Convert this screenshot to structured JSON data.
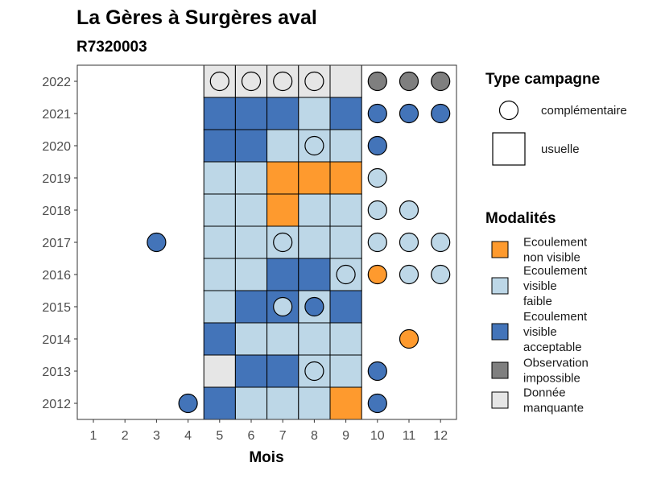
{
  "chart_data": {
    "type": "heatmap",
    "title": "La Gères à Surgères aval",
    "subtitle": "R7320003",
    "xlabel": "Mois",
    "ylabel": "",
    "x_categories": [
      "1",
      "2",
      "3",
      "4",
      "5",
      "6",
      "7",
      "8",
      "9",
      "10",
      "11",
      "12"
    ],
    "y_categories": [
      "2012",
      "2013",
      "2014",
      "2015",
      "2016",
      "2017",
      "2018",
      "2019",
      "2020",
      "2021",
      "2022"
    ],
    "grid": false,
    "legend_position": "right",
    "legend_type": {
      "title": "Type campagne",
      "entries": [
        {
          "key": "complementaire",
          "label": "complémentaire",
          "shape": "circle"
        },
        {
          "key": "usuelle",
          "label": "usuelle",
          "shape": "square"
        }
      ]
    },
    "legend_modalites": {
      "title": "Modalités",
      "entries": [
        {
          "key": "non_visible",
          "lines": [
            "Ecoulement",
            "non visible"
          ],
          "color": "#FE9A2E"
        },
        {
          "key": "faible",
          "lines": [
            "Ecoulement",
            "visible",
            "faible"
          ],
          "color": "#BDD7E7"
        },
        {
          "key": "acceptable",
          "lines": [
            "Ecoulement",
            "visible",
            "acceptable"
          ],
          "color": "#4374B9"
        },
        {
          "key": "impossible",
          "lines": [
            "Observation",
            "impossible"
          ],
          "color": "#7F7F7F"
        },
        {
          "key": "manquante",
          "lines": [
            "Donnée",
            "manquante"
          ],
          "color": "#E6E6E6"
        }
      ]
    },
    "usuelle": [
      {
        "year": "2022",
        "month": 5,
        "value": "manquante"
      },
      {
        "year": "2022",
        "month": 6,
        "value": "manquante"
      },
      {
        "year": "2022",
        "month": 7,
        "value": "manquante"
      },
      {
        "year": "2022",
        "month": 8,
        "value": "manquante"
      },
      {
        "year": "2022",
        "month": 9,
        "value": "manquante"
      },
      {
        "year": "2021",
        "month": 5,
        "value": "acceptable"
      },
      {
        "year": "2021",
        "month": 6,
        "value": "acceptable"
      },
      {
        "year": "2021",
        "month": 7,
        "value": "acceptable"
      },
      {
        "year": "2021",
        "month": 8,
        "value": "faible"
      },
      {
        "year": "2021",
        "month": 9,
        "value": "acceptable"
      },
      {
        "year": "2020",
        "month": 5,
        "value": "acceptable"
      },
      {
        "year": "2020",
        "month": 6,
        "value": "acceptable"
      },
      {
        "year": "2020",
        "month": 7,
        "value": "faible"
      },
      {
        "year": "2020",
        "month": 8,
        "value": "faible"
      },
      {
        "year": "2020",
        "month": 9,
        "value": "faible"
      },
      {
        "year": "2019",
        "month": 5,
        "value": "faible"
      },
      {
        "year": "2019",
        "month": 6,
        "value": "faible"
      },
      {
        "year": "2019",
        "month": 7,
        "value": "non_visible"
      },
      {
        "year": "2019",
        "month": 8,
        "value": "non_visible"
      },
      {
        "year": "2019",
        "month": 9,
        "value": "non_visible"
      },
      {
        "year": "2018",
        "month": 5,
        "value": "faible"
      },
      {
        "year": "2018",
        "month": 6,
        "value": "faible"
      },
      {
        "year": "2018",
        "month": 7,
        "value": "non_visible"
      },
      {
        "year": "2018",
        "month": 8,
        "value": "faible"
      },
      {
        "year": "2018",
        "month": 9,
        "value": "faible"
      },
      {
        "year": "2017",
        "month": 5,
        "value": "faible"
      },
      {
        "year": "2017",
        "month": 6,
        "value": "faible"
      },
      {
        "year": "2017",
        "month": 7,
        "value": "faible"
      },
      {
        "year": "2017",
        "month": 8,
        "value": "faible"
      },
      {
        "year": "2017",
        "month": 9,
        "value": "faible"
      },
      {
        "year": "2016",
        "month": 5,
        "value": "faible"
      },
      {
        "year": "2016",
        "month": 6,
        "value": "faible"
      },
      {
        "year": "2016",
        "month": 7,
        "value": "acceptable"
      },
      {
        "year": "2016",
        "month": 8,
        "value": "acceptable"
      },
      {
        "year": "2016",
        "month": 9,
        "value": "faible"
      },
      {
        "year": "2015",
        "month": 5,
        "value": "faible"
      },
      {
        "year": "2015",
        "month": 6,
        "value": "acceptable"
      },
      {
        "year": "2015",
        "month": 7,
        "value": "acceptable"
      },
      {
        "year": "2015",
        "month": 8,
        "value": "faible"
      },
      {
        "year": "2015",
        "month": 9,
        "value": "acceptable"
      },
      {
        "year": "2014",
        "month": 5,
        "value": "acceptable"
      },
      {
        "year": "2014",
        "month": 6,
        "value": "faible"
      },
      {
        "year": "2014",
        "month": 7,
        "value": "faible"
      },
      {
        "year": "2014",
        "month": 8,
        "value": "faible"
      },
      {
        "year": "2014",
        "month": 9,
        "value": "faible"
      },
      {
        "year": "2013",
        "month": 5,
        "value": "manquante"
      },
      {
        "year": "2013",
        "month": 6,
        "value": "acceptable"
      },
      {
        "year": "2013",
        "month": 7,
        "value": "acceptable"
      },
      {
        "year": "2013",
        "month": 8,
        "value": "faible"
      },
      {
        "year": "2013",
        "month": 9,
        "value": "faible"
      },
      {
        "year": "2012",
        "month": 5,
        "value": "acceptable"
      },
      {
        "year": "2012",
        "month": 6,
        "value": "faible"
      },
      {
        "year": "2012",
        "month": 7,
        "value": "faible"
      },
      {
        "year": "2012",
        "month": 8,
        "value": "faible"
      },
      {
        "year": "2012",
        "month": 9,
        "value": "non_visible"
      }
    ],
    "complementaire": [
      {
        "year": "2022",
        "month": 5,
        "value": "manquante"
      },
      {
        "year": "2022",
        "month": 6,
        "value": "manquante"
      },
      {
        "year": "2022",
        "month": 7,
        "value": "manquante"
      },
      {
        "year": "2022",
        "month": 8,
        "value": "manquante"
      },
      {
        "year": "2022",
        "month": 10,
        "value": "impossible"
      },
      {
        "year": "2022",
        "month": 11,
        "value": "impossible"
      },
      {
        "year": "2022",
        "month": 12,
        "value": "impossible"
      },
      {
        "year": "2021",
        "month": 10,
        "value": "acceptable"
      },
      {
        "year": "2021",
        "month": 11,
        "value": "acceptable"
      },
      {
        "year": "2021",
        "month": 12,
        "value": "acceptable"
      },
      {
        "year": "2020",
        "month": 8,
        "value": "faible"
      },
      {
        "year": "2020",
        "month": 10,
        "value": "acceptable"
      },
      {
        "year": "2019",
        "month": 10,
        "value": "faible"
      },
      {
        "year": "2018",
        "month": 10,
        "value": "faible"
      },
      {
        "year": "2018",
        "month": 11,
        "value": "faible"
      },
      {
        "year": "2017",
        "month": 3,
        "value": "acceptable"
      },
      {
        "year": "2017",
        "month": 7,
        "value": "faible"
      },
      {
        "year": "2017",
        "month": 10,
        "value": "faible"
      },
      {
        "year": "2017",
        "month": 11,
        "value": "faible"
      },
      {
        "year": "2017",
        "month": 12,
        "value": "faible"
      },
      {
        "year": "2016",
        "month": 9,
        "value": "faible"
      },
      {
        "year": "2016",
        "month": 10,
        "value": "non_visible"
      },
      {
        "year": "2016",
        "month": 11,
        "value": "faible"
      },
      {
        "year": "2016",
        "month": 12,
        "value": "faible"
      },
      {
        "year": "2015",
        "month": 7,
        "value": "faible"
      },
      {
        "year": "2015",
        "month": 8,
        "value": "acceptable"
      },
      {
        "year": "2014",
        "month": 11,
        "value": "non_visible"
      },
      {
        "year": "2013",
        "month": 8,
        "value": "faible"
      },
      {
        "year": "2013",
        "month": 10,
        "value": "acceptable"
      },
      {
        "year": "2012",
        "month": 4,
        "value": "acceptable"
      },
      {
        "year": "2012",
        "month": 10,
        "value": "acceptable"
      }
    ]
  }
}
